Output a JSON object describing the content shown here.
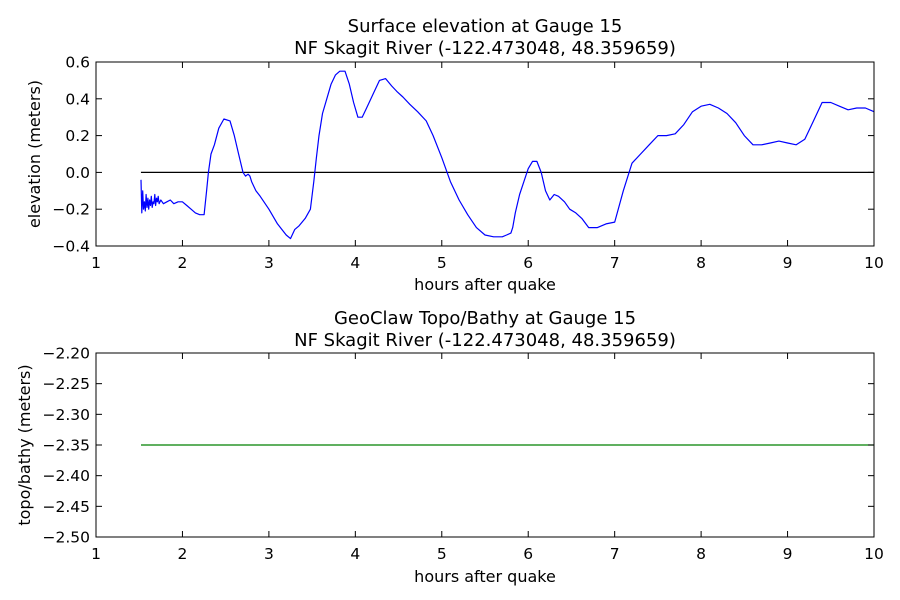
{
  "chart_data": [
    {
      "type": "line",
      "title_lines": [
        "Surface elevation at Gauge 15",
        "NF Skagit River  (-122.473048, 48.359659)"
      ],
      "xlabel": "hours after quake",
      "ylabel": "elevation (meters)",
      "xlim": [
        1,
        10
      ],
      "ylim": [
        -0.4,
        0.6
      ],
      "xticks": [
        1,
        2,
        3,
        4,
        5,
        6,
        7,
        8,
        9,
        10
      ],
      "yticks": [
        -0.4,
        -0.2,
        0.0,
        0.2,
        0.4,
        0.6
      ],
      "ytick_labels": [
        "−0.4",
        "−0.2",
        "0.0",
        "0.2",
        "0.4",
        "0.6"
      ],
      "grid": false,
      "reference_line": {
        "y": 0.0,
        "x": [
          1.52,
          10
        ],
        "color": "#000000"
      },
      "series": [
        {
          "color": "#0000ff",
          "x": [
            1.52,
            1.53,
            1.54,
            1.55,
            1.56,
            1.57,
            1.58,
            1.59,
            1.6,
            1.61,
            1.62,
            1.63,
            1.64,
            1.65,
            1.66,
            1.67,
            1.68,
            1.69,
            1.7,
            1.71,
            1.72,
            1.73,
            1.75,
            1.78,
            1.82,
            1.86,
            1.9,
            1.95,
            2.0,
            2.05,
            2.1,
            2.15,
            2.2,
            2.25,
            2.28,
            2.3,
            2.33,
            2.37,
            2.42,
            2.48,
            2.55,
            2.6,
            2.65,
            2.7,
            2.73,
            2.76,
            2.78,
            2.8,
            2.85,
            2.9,
            3.0,
            3.1,
            3.2,
            3.25,
            3.3,
            3.35,
            3.42,
            3.48,
            3.52,
            3.55,
            3.58,
            3.62,
            3.67,
            3.72,
            3.77,
            3.82,
            3.88,
            3.93,
            3.98,
            4.03,
            4.08,
            4.13,
            4.2,
            4.28,
            4.35,
            4.42,
            4.48,
            4.55,
            4.63,
            4.72,
            4.82,
            4.9,
            5.0,
            5.1,
            5.2,
            5.3,
            5.4,
            5.5,
            5.6,
            5.65,
            5.7,
            5.75,
            5.8,
            5.82,
            5.85,
            5.9,
            5.95,
            6.0,
            6.05,
            6.1,
            6.15,
            6.2,
            6.25,
            6.3,
            6.35,
            6.42,
            6.48,
            6.55,
            6.62,
            6.7,
            6.8,
            6.9,
            7.0,
            7.1,
            7.2,
            7.3,
            7.4,
            7.5,
            7.6,
            7.7,
            7.8,
            7.9,
            8.0,
            8.1,
            8.2,
            8.3,
            8.4,
            8.5,
            8.6,
            8.7,
            8.8,
            8.9,
            9.0,
            9.1,
            9.2,
            9.3,
            9.4,
            9.5,
            9.6,
            9.7,
            9.8,
            9.9,
            10.0
          ],
          "y": [
            -0.04,
            -0.22,
            -0.1,
            -0.2,
            -0.16,
            -0.21,
            -0.12,
            -0.19,
            -0.14,
            -0.2,
            -0.15,
            -0.18,
            -0.13,
            -0.19,
            -0.16,
            -0.17,
            -0.12,
            -0.18,
            -0.14,
            -0.16,
            -0.13,
            -0.17,
            -0.15,
            -0.17,
            -0.16,
            -0.15,
            -0.17,
            -0.16,
            -0.16,
            -0.18,
            -0.2,
            -0.22,
            -0.23,
            -0.23,
            -0.1,
            0.0,
            0.1,
            0.15,
            0.24,
            0.29,
            0.28,
            0.2,
            0.1,
            0.0,
            -0.02,
            -0.01,
            -0.02,
            -0.05,
            -0.1,
            -0.13,
            -0.2,
            -0.28,
            -0.34,
            -0.36,
            -0.31,
            -0.29,
            -0.25,
            -0.2,
            -0.05,
            0.08,
            0.2,
            0.32,
            0.4,
            0.48,
            0.53,
            0.55,
            0.55,
            0.48,
            0.38,
            0.3,
            0.3,
            0.35,
            0.42,
            0.5,
            0.51,
            0.47,
            0.44,
            0.41,
            0.37,
            0.33,
            0.28,
            0.2,
            0.08,
            -0.05,
            -0.15,
            -0.23,
            -0.3,
            -0.34,
            -0.35,
            -0.35,
            -0.35,
            -0.34,
            -0.33,
            -0.3,
            -0.22,
            -0.12,
            -0.05,
            0.02,
            0.06,
            0.06,
            0.0,
            -0.1,
            -0.15,
            -0.12,
            -0.13,
            -0.16,
            -0.2,
            -0.22,
            -0.25,
            -0.3,
            -0.3,
            -0.28,
            -0.27,
            -0.1,
            0.05,
            0.1,
            0.15,
            0.2,
            0.2,
            0.21,
            0.26,
            0.33,
            0.36,
            0.37,
            0.35,
            0.32,
            0.27,
            0.2,
            0.15,
            0.15,
            0.16,
            0.17,
            0.16,
            0.15,
            0.18,
            0.28,
            0.38,
            0.38,
            0.36,
            0.34,
            0.35,
            0.35,
            0.33
          ]
        }
      ]
    },
    {
      "type": "line",
      "title_lines": [
        "GeoClaw Topo/Bathy at Gauge 15",
        "NF Skagit River  (-122.473048, 48.359659)"
      ],
      "xlabel": "hours after quake",
      "ylabel": "topo/bathy (meters)",
      "xlim": [
        1,
        10
      ],
      "ylim": [
        -2.5,
        -2.2
      ],
      "xticks": [
        1,
        2,
        3,
        4,
        5,
        6,
        7,
        8,
        9,
        10
      ],
      "yticks": [
        -2.5,
        -2.45,
        -2.4,
        -2.35,
        -2.3,
        -2.25,
        -2.2
      ],
      "ytick_labels": [
        "−2.50",
        "−2.45",
        "−2.40",
        "−2.35",
        "−2.30",
        "−2.25",
        "−2.20"
      ],
      "grid": false,
      "series": [
        {
          "color": "#008000",
          "x": [
            1.52,
            10.0
          ],
          "y": [
            -2.35,
            -2.35
          ]
        }
      ]
    }
  ]
}
